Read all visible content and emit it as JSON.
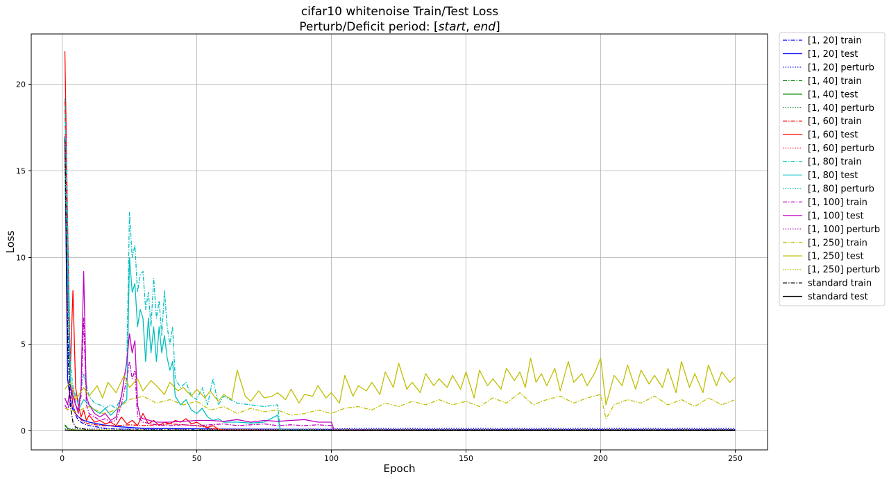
{
  "chart_data": {
    "type": "line",
    "title_line1": "cifar10 whitenoise Train/Test Loss",
    "title_line2_prefix": "Perturb/Deficit period: [",
    "title_line2_start": "start",
    "title_line2_sep": ", ",
    "title_line2_end": "end",
    "title_line2_suffix": "]",
    "xlabel": "Epoch",
    "ylabel": "Loss",
    "xlim": [
      -11.5,
      262
    ],
    "ylim": [
      -1.1,
      22.9
    ],
    "xticks": [
      0,
      50,
      100,
      150,
      200,
      250
    ],
    "yticks": [
      0,
      5,
      10,
      15,
      20
    ],
    "grid": true,
    "legend_position": "outside-top-right",
    "series": [
      {
        "name": "[1, 20] train",
        "color": "#0000ff",
        "style": "dashdot",
        "x": [
          1,
          2,
          3,
          4,
          5,
          6,
          8,
          10,
          12,
          14,
          16,
          18,
          20,
          30,
          60,
          100,
          150,
          200,
          250
        ],
        "y": [
          16.5,
          6.0,
          2.5,
          1.5,
          0.9,
          0.6,
          0.4,
          0.3,
          0.25,
          0.2,
          0.15,
          0.12,
          0.1,
          0.08,
          0.06,
          0.06,
          0.06,
          0.06,
          0.06
        ]
      },
      {
        "name": "[1, 20] test",
        "color": "#0000ff",
        "style": "solid",
        "x": [
          1,
          2,
          3,
          4,
          6,
          8,
          10,
          15,
          20,
          30,
          60,
          100,
          150,
          200,
          250
        ],
        "y": [
          17.0,
          3.0,
          1.8,
          1.2,
          0.8,
          0.6,
          0.5,
          0.35,
          0.25,
          0.15,
          0.1,
          0.08,
          0.08,
          0.08,
          0.08
        ]
      },
      {
        "name": "[1, 20] perturb",
        "color": "#0000ff",
        "style": "dotted",
        "x": [
          1,
          5,
          10,
          20,
          50,
          100,
          110,
          120,
          150,
          200,
          250
        ],
        "y": [
          0.1,
          0.1,
          0.1,
          0.1,
          0.08,
          0.1,
          0.15,
          0.15,
          0.15,
          0.15,
          0.15
        ]
      },
      {
        "name": "[1, 40] train",
        "color": "#008000",
        "style": "dashdot",
        "x": [
          1,
          2,
          3,
          5,
          10,
          20,
          40,
          60,
          100,
          150,
          200,
          250
        ],
        "y": [
          0.3,
          0.15,
          0.08,
          0.05,
          0.03,
          0.02,
          0.02,
          0.02,
          0.02,
          0.02,
          0.02,
          0.02
        ]
      },
      {
        "name": "[1, 40] test",
        "color": "#008000",
        "style": "solid",
        "x": [
          1,
          2,
          3,
          5,
          10,
          20,
          40,
          60,
          100,
          150,
          200,
          250
        ],
        "y": [
          0.35,
          0.15,
          0.08,
          0.05,
          0.03,
          0.02,
          0.02,
          0.02,
          0.02,
          0.02,
          0.02,
          0.02
        ]
      },
      {
        "name": "[1, 40] perturb",
        "color": "#008000",
        "style": "dotted",
        "x": [
          1,
          10,
          40,
          100,
          150,
          200,
          250
        ],
        "y": [
          0.05,
          0.04,
          0.03,
          0.03,
          0.03,
          0.03,
          0.03
        ]
      },
      {
        "name": "[1, 60] train",
        "color": "#ff0000",
        "style": "dashdot",
        "x": [
          1,
          2,
          3,
          4,
          5,
          6,
          8,
          10,
          15,
          20,
          25,
          30,
          35,
          40,
          45,
          50,
          55,
          60,
          100,
          150,
          200,
          250
        ],
        "y": [
          19.0,
          8.0,
          3.0,
          1.5,
          1.0,
          0.8,
          0.5,
          0.4,
          0.3,
          0.3,
          0.35,
          0.3,
          0.35,
          0.4,
          0.35,
          0.3,
          0.15,
          0.05,
          0.03,
          0.03,
          0.03,
          0.03
        ]
      },
      {
        "name": "[1, 60] test",
        "color": "#ff0000",
        "style": "solid",
        "x": [
          1,
          2,
          3,
          4,
          5,
          6,
          7,
          8,
          9,
          10,
          12,
          14,
          16,
          18,
          20,
          22,
          24,
          26,
          28,
          30,
          32,
          34,
          36,
          38,
          40,
          42,
          44,
          46,
          48,
          50,
          52,
          54,
          56,
          58,
          60,
          100,
          150,
          200,
          250
        ],
        "y": [
          21.9,
          12.0,
          3.5,
          8.1,
          2.5,
          1.5,
          0.8,
          1.2,
          0.6,
          0.9,
          0.5,
          0.6,
          0.4,
          0.5,
          0.3,
          0.8,
          0.4,
          0.6,
          0.3,
          1.0,
          0.4,
          0.6,
          0.3,
          0.5,
          0.4,
          0.6,
          0.5,
          0.7,
          0.4,
          0.5,
          0.3,
          0.2,
          0.3,
          0.1,
          0.05,
          0.03,
          0.03,
          0.03,
          0.03
        ]
      },
      {
        "name": "[1, 60] perturb",
        "color": "#ff0000",
        "style": "dotted",
        "x": [
          1,
          20,
          60,
          100,
          150,
          200,
          250
        ],
        "y": [
          0.05,
          0.04,
          0.04,
          0.04,
          0.04,
          0.04,
          0.04
        ]
      },
      {
        "name": "[1, 80] train",
        "color": "#00bfbf",
        "style": "dashdot",
        "x": [
          1,
          2,
          3,
          4,
          5,
          6,
          8,
          10,
          12,
          14,
          16,
          18,
          20,
          22,
          24,
          25,
          26,
          27,
          28,
          29,
          30,
          31,
          32,
          33,
          34,
          35,
          36,
          37,
          38,
          39,
          40,
          41,
          42,
          44,
          46,
          48,
          50,
          52,
          54,
          56,
          58,
          60,
          65,
          70,
          75,
          80,
          81,
          100,
          150,
          200,
          250
        ],
        "y": [
          19.2,
          12.0,
          4.0,
          2.5,
          2.0,
          1.5,
          3.3,
          2.0,
          1.6,
          1.5,
          1.3,
          1.5,
          1.3,
          2.0,
          4.0,
          12.6,
          10.0,
          10.7,
          8.0,
          9.0,
          9.2,
          7.0,
          8.0,
          6.0,
          8.8,
          6.5,
          7.5,
          5.5,
          8.1,
          6.0,
          5.0,
          6.0,
          3.0,
          2.5,
          2.8,
          2.0,
          1.8,
          2.5,
          1.5,
          3.0,
          1.5,
          2.0,
          1.6,
          1.5,
          1.4,
          1.5,
          0.05,
          0.03,
          0.03,
          0.03,
          0.03
        ]
      },
      {
        "name": "[1, 80] test",
        "color": "#00bfbf",
        "style": "solid",
        "x": [
          1,
          2,
          3,
          4,
          5,
          6,
          8,
          10,
          12,
          14,
          16,
          18,
          20,
          22,
          24,
          25,
          26,
          27,
          28,
          29,
          30,
          31,
          32,
          33,
          34,
          35,
          36,
          37,
          38,
          39,
          40,
          41,
          42,
          44,
          46,
          48,
          50,
          52,
          54,
          56,
          58,
          60,
          65,
          70,
          75,
          80,
          81,
          100,
          150,
          200,
          250
        ],
        "y": [
          15.5,
          9.0,
          3.0,
          2.0,
          1.5,
          1.2,
          1.8,
          1.5,
          1.2,
          1.0,
          1.3,
          0.9,
          1.2,
          1.5,
          1.8,
          10.0,
          8.0,
          8.5,
          6.0,
          7.0,
          6.5,
          4.0,
          6.5,
          4.5,
          6.0,
          4.0,
          6.0,
          4.5,
          5.5,
          4.2,
          3.5,
          4.0,
          2.0,
          1.5,
          1.8,
          1.2,
          1.0,
          1.3,
          0.8,
          0.6,
          0.7,
          0.5,
          0.5,
          0.45,
          0.5,
          0.9,
          0.05,
          0.03,
          0.03,
          0.03,
          0.03
        ]
      },
      {
        "name": "[1, 80] perturb",
        "color": "#00bfbf",
        "style": "dotted",
        "x": [
          1,
          40,
          80,
          100,
          150,
          200,
          250
        ],
        "y": [
          0.05,
          0.05,
          0.05,
          0.05,
          0.05,
          0.05,
          0.05
        ]
      },
      {
        "name": "[1, 100] train",
        "color": "#bf00bf",
        "style": "dashdot",
        "x": [
          1,
          2,
          3,
          4,
          5,
          6,
          7,
          8,
          9,
          10,
          12,
          14,
          16,
          18,
          20,
          22,
          24,
          25,
          26,
          27,
          28,
          30,
          35,
          40,
          45,
          50,
          55,
          60,
          65,
          70,
          75,
          80,
          85,
          90,
          95,
          100,
          101,
          150,
          200,
          250
        ],
        "y": [
          1.5,
          1.2,
          1.8,
          2.5,
          1.5,
          1.2,
          2.0,
          6.5,
          1.5,
          1.0,
          0.8,
          0.6,
          0.7,
          0.5,
          0.6,
          1.5,
          3.0,
          4.0,
          3.0,
          3.5,
          0.8,
          0.5,
          0.35,
          0.3,
          0.35,
          0.3,
          0.35,
          0.4,
          0.3,
          0.35,
          0.4,
          0.3,
          0.35,
          0.3,
          0.35,
          0.3,
          0.05,
          0.03,
          0.03,
          0.03
        ]
      },
      {
        "name": "[1, 100] test",
        "color": "#bf00bf",
        "style": "solid",
        "x": [
          1,
          2,
          3,
          4,
          5,
          6,
          7,
          8,
          9,
          10,
          12,
          14,
          16,
          18,
          20,
          22,
          24,
          25,
          26,
          27,
          28,
          29,
          30,
          35,
          40,
          45,
          50,
          55,
          60,
          65,
          70,
          75,
          80,
          85,
          90,
          95,
          100,
          101,
          150,
          200,
          250
        ],
        "y": [
          1.9,
          1.5,
          2.5,
          2.0,
          1.5,
          1.0,
          2.5,
          9.2,
          2.0,
          1.5,
          1.0,
          0.8,
          1.0,
          0.6,
          0.8,
          2.0,
          4.0,
          5.6,
          4.5,
          5.2,
          1.5,
          0.8,
          0.7,
          0.5,
          0.5,
          0.55,
          0.6,
          0.6,
          0.55,
          0.65,
          0.5,
          0.6,
          0.55,
          0.6,
          0.65,
          0.5,
          0.5,
          0.05,
          0.03,
          0.03,
          0.03
        ]
      },
      {
        "name": "[1, 100] perturb",
        "color": "#bf00bf",
        "style": "dotted",
        "x": [
          1,
          50,
          100,
          150,
          200,
          250
        ],
        "y": [
          0.06,
          0.06,
          0.06,
          0.06,
          0.06,
          0.06
        ]
      },
      {
        "name": "[1, 250] train",
        "color": "#bfbf00",
        "style": "dashdot",
        "x": [
          1,
          5,
          10,
          15,
          20,
          25,
          30,
          35,
          40,
          45,
          50,
          55,
          60,
          65,
          70,
          75,
          80,
          85,
          90,
          95,
          100,
          105,
          110,
          115,
          120,
          125,
          130,
          135,
          140,
          145,
          150,
          155,
          160,
          165,
          170,
          175,
          180,
          185,
          190,
          195,
          200,
          202,
          205,
          210,
          215,
          220,
          225,
          230,
          235,
          240,
          245,
          250
        ],
        "y": [
          1.3,
          1.1,
          1.4,
          1.0,
          1.2,
          1.8,
          2.0,
          1.6,
          1.8,
          1.5,
          1.7,
          1.2,
          1.4,
          1.0,
          1.3,
          1.1,
          1.2,
          0.9,
          1.0,
          1.2,
          1.0,
          1.3,
          1.4,
          1.2,
          1.6,
          1.4,
          1.7,
          1.5,
          1.8,
          1.5,
          1.7,
          1.4,
          1.9,
          1.6,
          2.2,
          1.5,
          1.8,
          2.0,
          1.6,
          1.9,
          2.1,
          0.7,
          1.5,
          1.8,
          1.6,
          2.0,
          1.5,
          1.8,
          1.4,
          1.9,
          1.5,
          1.8
        ]
      },
      {
        "name": "[1, 250] test",
        "color": "#bfbf00",
        "style": "solid",
        "x": [
          1,
          3,
          5,
          8,
          10,
          13,
          15,
          17,
          20,
          23,
          25,
          28,
          30,
          33,
          35,
          38,
          40,
          43,
          45,
          48,
          50,
          53,
          55,
          58,
          60,
          63,
          65,
          68,
          70,
          73,
          75,
          78,
          80,
          83,
          85,
          88,
          90,
          93,
          95,
          98,
          100,
          103,
          105,
          108,
          110,
          113,
          115,
          118,
          120,
          123,
          125,
          128,
          130,
          133,
          135,
          138,
          140,
          143,
          145,
          148,
          150,
          153,
          155,
          158,
          160,
          163,
          165,
          168,
          170,
          172,
          174,
          176,
          178,
          180,
          183,
          185,
          188,
          190,
          193,
          195,
          198,
          200,
          202,
          205,
          208,
          210,
          213,
          215,
          218,
          220,
          223,
          225,
          228,
          230,
          233,
          235,
          238,
          240,
          243,
          245,
          248,
          250
        ],
        "y": [
          2.4,
          2.8,
          1.8,
          2.5,
          2.0,
          2.6,
          1.9,
          2.8,
          2.2,
          3.2,
          2.5,
          3.0,
          2.3,
          2.9,
          2.6,
          2.1,
          2.8,
          2.3,
          2.5,
          2.0,
          2.4,
          1.9,
          2.3,
          1.7,
          2.1,
          1.8,
          3.5,
          2.0,
          1.7,
          2.3,
          1.9,
          2.0,
          2.2,
          1.8,
          2.4,
          1.6,
          2.1,
          2.0,
          2.6,
          1.9,
          2.2,
          1.6,
          3.2,
          2.0,
          2.6,
          2.3,
          2.8,
          2.1,
          3.4,
          2.5,
          3.9,
          2.4,
          2.8,
          2.2,
          3.3,
          2.6,
          3.0,
          2.5,
          3.2,
          2.4,
          3.4,
          1.9,
          3.5,
          2.6,
          3.0,
          2.4,
          3.6,
          2.9,
          3.4,
          2.5,
          4.2,
          2.8,
          3.3,
          2.6,
          3.6,
          2.3,
          4.0,
          2.8,
          3.3,
          2.6,
          3.4,
          4.2,
          1.5,
          3.2,
          2.6,
          3.8,
          2.4,
          3.5,
          2.7,
          3.2,
          2.5,
          3.6,
          2.2,
          4.0,
          2.5,
          3.3,
          2.2,
          3.8,
          2.6,
          3.4,
          2.8,
          3.1
        ]
      },
      {
        "name": "[1, 250] perturb",
        "color": "#bfbf00",
        "style": "dotted",
        "x": [
          1,
          50,
          100,
          150,
          200,
          250
        ],
        "y": [
          0.07,
          0.07,
          0.07,
          0.07,
          0.07,
          0.07
        ]
      },
      {
        "name": "standard train",
        "color": "#000000",
        "style": "dashdot",
        "x": [
          1,
          2,
          3,
          4,
          5,
          10,
          20,
          50,
          100,
          150,
          200,
          250
        ],
        "y": [
          16.8,
          5.0,
          1.5,
          0.5,
          0.2,
          0.05,
          0.02,
          0.01,
          0.01,
          0.01,
          0.01,
          0.01
        ]
      },
      {
        "name": "standard test",
        "color": "#000000",
        "style": "solid",
        "x": [
          1,
          3,
          5,
          10,
          20,
          50,
          100,
          150,
          200,
          250
        ],
        "y": [
          0.05,
          0.03,
          0.02,
          0.02,
          0.02,
          0.02,
          0.02,
          0.02,
          0.02,
          0.02
        ]
      }
    ]
  }
}
